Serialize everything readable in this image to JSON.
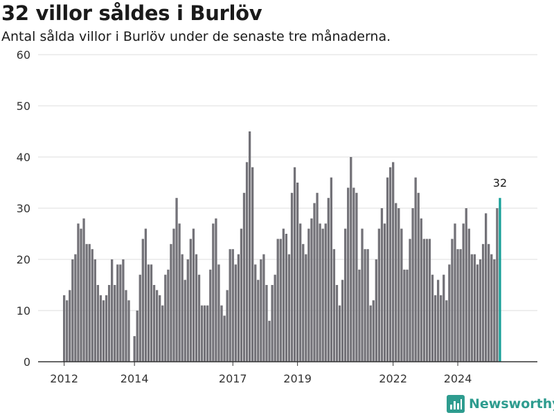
{
  "header": {
    "title": "32 villor såldes i Burlöv",
    "subtitle": "Antal sålda villor i Burlöv under de senaste tre månaderna."
  },
  "brand": {
    "name": "Newsworthy",
    "color": "#2e9c8f"
  },
  "colors": {
    "bar": "#737278",
    "highlight": "#18a199",
    "grid": "#dedede",
    "axis": "#333333"
  },
  "chart_data": {
    "type": "bar",
    "title": "32 villor såldes i Burlöv",
    "subtitle": "Antal sålda villor i Burlöv under de senaste tre månaderna.",
    "xlabel": "",
    "ylabel": "",
    "ylim": [
      0,
      60
    ],
    "yticks": [
      0,
      10,
      20,
      30,
      40,
      50,
      60
    ],
    "xticks": [
      "2012",
      "2014",
      "2017",
      "2019",
      "2022",
      "2024"
    ],
    "xtick_positions": [
      0,
      25,
      60,
      83,
      117,
      140
    ],
    "grid": true,
    "highlight_label": "32",
    "values": [
      13,
      12,
      14,
      20,
      21,
      27,
      26,
      28,
      23,
      23,
      22,
      20,
      15,
      13,
      12,
      13,
      15,
      20,
      15,
      19,
      19,
      20,
      14,
      12,
      0,
      5,
      10,
      17,
      24,
      26,
      19,
      19,
      15,
      14,
      13,
      11,
      17,
      18,
      23,
      26,
      32,
      27,
      21,
      16,
      20,
      24,
      26,
      21,
      17,
      11,
      11,
      11,
      18,
      27,
      28,
      19,
      11,
      9,
      14,
      22,
      22,
      19,
      21,
      26,
      33,
      39,
      45,
      38,
      19,
      16,
      20,
      21,
      15,
      8,
      15,
      17,
      24,
      24,
      26,
      25,
      21,
      33,
      38,
      35,
      27,
      23,
      21,
      26,
      28,
      31,
      33,
      27,
      26,
      27,
      32,
      36,
      22,
      15,
      11,
      16,
      26,
      34,
      40,
      34,
      33,
      18,
      26,
      22,
      22,
      11,
      12,
      20,
      26,
      30,
      27,
      36,
      38,
      39,
      31,
      30,
      26,
      18,
      18,
      24,
      30,
      36,
      33,
      28,
      24,
      24,
      24,
      17,
      13,
      16,
      13,
      17,
      12,
      19,
      24,
      27,
      22,
      22,
      27,
      30,
      26,
      21,
      21,
      19,
      20,
      23,
      29,
      23,
      21,
      20,
      30,
      32
    ]
  }
}
